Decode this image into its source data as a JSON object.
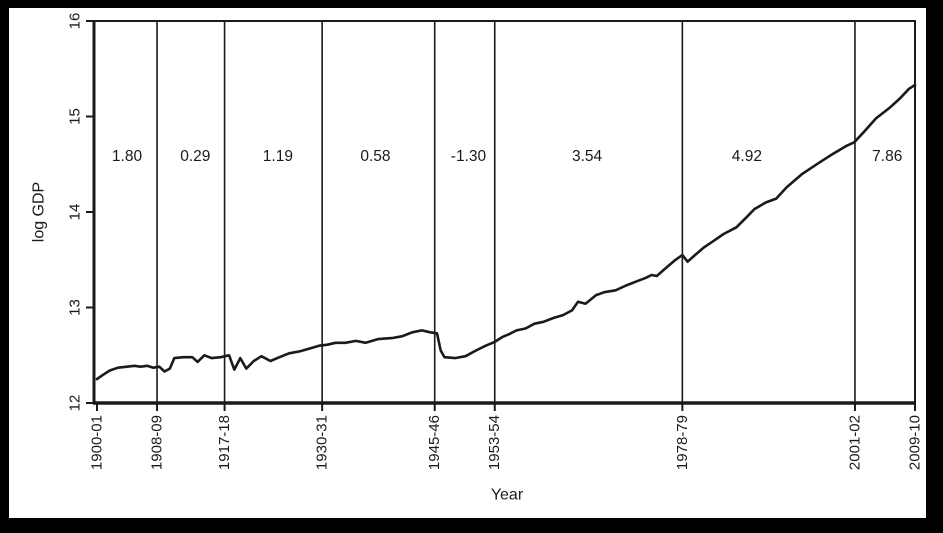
{
  "figure": {
    "background": "#000000",
    "paper_color": "#ffffff",
    "ink_color": "#1a1a1a"
  },
  "chart_data": {
    "type": "line",
    "title": "",
    "xlabel": "Year",
    "ylabel": "log GDP",
    "legend": false,
    "grid": false,
    "y_ticks": [
      12,
      13,
      14,
      15,
      16
    ],
    "y_range": [
      12,
      16
    ],
    "x_tick_labels": [
      "1900-01",
      "1908-09",
      "1917-18",
      "1930-31",
      "1945-46",
      "1953-54",
      "1978-79",
      "2001-02",
      "2009-10"
    ],
    "x_tick_years": [
      1900.5,
      1908.5,
      1917.5,
      1930.5,
      1945.5,
      1953.5,
      1978.5,
      2001.5,
      2009.5
    ],
    "x_range": [
      1900.1,
      2009.5
    ],
    "partition_years": [
      1908.5,
      1917.5,
      1930.5,
      1945.5,
      1953.5,
      1978.5,
      2001.5
    ],
    "segment_growth_labels": [
      {
        "text": "1.80",
        "at_year": 1904.5,
        "at_value": 14.58
      },
      {
        "text": "0.29",
        "at_year": 1913.6,
        "at_value": 14.58
      },
      {
        "text": "1.19",
        "at_year": 1924.6,
        "at_value": 14.58
      },
      {
        "text": "0.58",
        "at_year": 1937.6,
        "at_value": 14.58
      },
      {
        "text": "-1.30",
        "at_year": 1950.0,
        "at_value": 14.58
      },
      {
        "text": "3.54",
        "at_year": 1965.8,
        "at_value": 14.58
      },
      {
        "text": "4.92",
        "at_year": 1987.1,
        "at_value": 14.58
      },
      {
        "text": "7.86",
        "at_year": 2005.8,
        "at_value": 14.58
      }
    ],
    "series": [
      [
        1900.5,
        12.25
      ],
      [
        1901.2,
        12.29
      ],
      [
        1902.2,
        12.34
      ],
      [
        1903.3,
        12.37
      ],
      [
        1904.5,
        12.38
      ],
      [
        1905.5,
        12.39
      ],
      [
        1906.3,
        12.38
      ],
      [
        1907.2,
        12.39
      ],
      [
        1908.0,
        12.37
      ],
      [
        1908.8,
        12.38
      ],
      [
        1909.5,
        12.33
      ],
      [
        1910.2,
        12.36
      ],
      [
        1910.8,
        12.47
      ],
      [
        1912.0,
        12.48
      ],
      [
        1913.2,
        12.48
      ],
      [
        1913.9,
        12.43
      ],
      [
        1914.8,
        12.5
      ],
      [
        1915.8,
        12.47
      ],
      [
        1917.0,
        12.48
      ],
      [
        1918.1,
        12.5
      ],
      [
        1918.8,
        12.35
      ],
      [
        1919.6,
        12.47
      ],
      [
        1920.4,
        12.36
      ],
      [
        1921.4,
        12.44
      ],
      [
        1922.4,
        12.49
      ],
      [
        1923.6,
        12.44
      ],
      [
        1924.8,
        12.48
      ],
      [
        1926.1,
        12.52
      ],
      [
        1927.5,
        12.54
      ],
      [
        1928.8,
        12.57
      ],
      [
        1930.1,
        12.6
      ],
      [
        1931.2,
        12.61
      ],
      [
        1932.3,
        12.63
      ],
      [
        1933.6,
        12.63
      ],
      [
        1935.0,
        12.65
      ],
      [
        1936.3,
        12.63
      ],
      [
        1938.0,
        12.67
      ],
      [
        1939.8,
        12.68
      ],
      [
        1941.2,
        12.7
      ],
      [
        1942.5,
        12.74
      ],
      [
        1943.8,
        12.76
      ],
      [
        1944.9,
        12.74
      ],
      [
        1945.8,
        12.73
      ],
      [
        1946.3,
        12.55
      ],
      [
        1946.8,
        12.48
      ],
      [
        1948.2,
        12.47
      ],
      [
        1949.6,
        12.49
      ],
      [
        1951.0,
        12.55
      ],
      [
        1952.3,
        12.6
      ],
      [
        1953.5,
        12.64
      ],
      [
        1954.5,
        12.69
      ],
      [
        1955.4,
        12.72
      ],
      [
        1956.4,
        12.76
      ],
      [
        1957.6,
        12.78
      ],
      [
        1958.8,
        12.83
      ],
      [
        1960.0,
        12.85
      ],
      [
        1961.3,
        12.89
      ],
      [
        1962.6,
        12.92
      ],
      [
        1963.8,
        12.97
      ],
      [
        1964.6,
        13.06
      ],
      [
        1965.6,
        13.04
      ],
      [
        1967.0,
        13.13
      ],
      [
        1968.1,
        13.16
      ],
      [
        1969.6,
        13.18
      ],
      [
        1971.0,
        13.23
      ],
      [
        1972.3,
        13.27
      ],
      [
        1973.6,
        13.31
      ],
      [
        1974.4,
        13.34
      ],
      [
        1975.1,
        13.33
      ],
      [
        1976.4,
        13.42
      ],
      [
        1977.6,
        13.5
      ],
      [
        1978.5,
        13.55
      ],
      [
        1979.2,
        13.48
      ],
      [
        1980.2,
        13.55
      ],
      [
        1981.4,
        13.63
      ],
      [
        1982.7,
        13.7
      ],
      [
        1984.0,
        13.77
      ],
      [
        1985.7,
        13.84
      ],
      [
        1987.0,
        13.94
      ],
      [
        1988.1,
        14.03
      ],
      [
        1989.6,
        14.1
      ],
      [
        1991.0,
        14.14
      ],
      [
        1992.4,
        14.26
      ],
      [
        1994.5,
        14.4
      ],
      [
        1996.8,
        14.52
      ],
      [
        1998.6,
        14.61
      ],
      [
        2000.3,
        14.69
      ],
      [
        2001.4,
        14.73
      ],
      [
        2002.6,
        14.83
      ],
      [
        2004.3,
        14.98
      ],
      [
        2006.1,
        15.09
      ],
      [
        2007.5,
        15.19
      ],
      [
        2008.7,
        15.29
      ],
      [
        2009.5,
        15.33
      ]
    ]
  }
}
